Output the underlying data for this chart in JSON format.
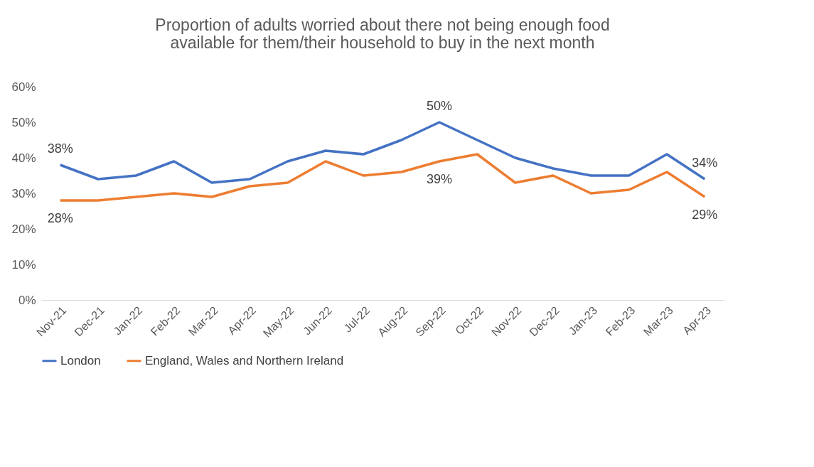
{
  "chart_data": {
    "type": "line",
    "title": "Proportion of adults worried about there not being enough food\navailable for them/their household to buy in the next month",
    "categories": [
      "Nov-21",
      "Dec-21",
      "Jan-22",
      "Feb-22",
      "Mar-22",
      "Apr-22",
      "May-22",
      "Jun-22",
      "Jul-22",
      "Aug-22",
      "Sep-22",
      "Oct-22",
      "Nov-22",
      "Dec-22",
      "Jan-23",
      "Feb-23",
      "Mar-23",
      "Apr-23"
    ],
    "series": [
      {
        "name": "London",
        "color": "#4472c4",
        "values": [
          38,
          34,
          35,
          39,
          33,
          34,
          39,
          42,
          41,
          45,
          50,
          45,
          40,
          37,
          35,
          35,
          41,
          34
        ],
        "value_labels": [
          "38%",
          null,
          null,
          null,
          null,
          null,
          null,
          null,
          null,
          null,
          "50%",
          null,
          null,
          null,
          null,
          null,
          null,
          "34%"
        ]
      },
      {
        "name": "England, Wales and Northern Ireland",
        "color": "#ed7d31",
        "values": [
          28,
          28,
          29,
          30,
          29,
          32,
          33,
          39,
          35,
          36,
          39,
          41,
          33,
          35,
          30,
          31,
          36,
          29
        ],
        "value_labels": [
          "28%",
          null,
          null,
          null,
          null,
          null,
          null,
          null,
          null,
          null,
          "39%",
          null,
          null,
          null,
          null,
          null,
          null,
          "29%"
        ]
      }
    ],
    "ylim": [
      0,
      60
    ],
    "yticks": [
      {
        "value": 0,
        "label": "0%"
      },
      {
        "value": 10,
        "label": "10%"
      },
      {
        "value": 20,
        "label": "20%"
      },
      {
        "value": 30,
        "label": "30%"
      },
      {
        "value": 40,
        "label": "40%"
      },
      {
        "value": 50,
        "label": "50%"
      },
      {
        "value": 60,
        "label": "60%"
      }
    ],
    "grid": false,
    "legend": "bottom",
    "marker": "none",
    "line_style": "solid"
  }
}
